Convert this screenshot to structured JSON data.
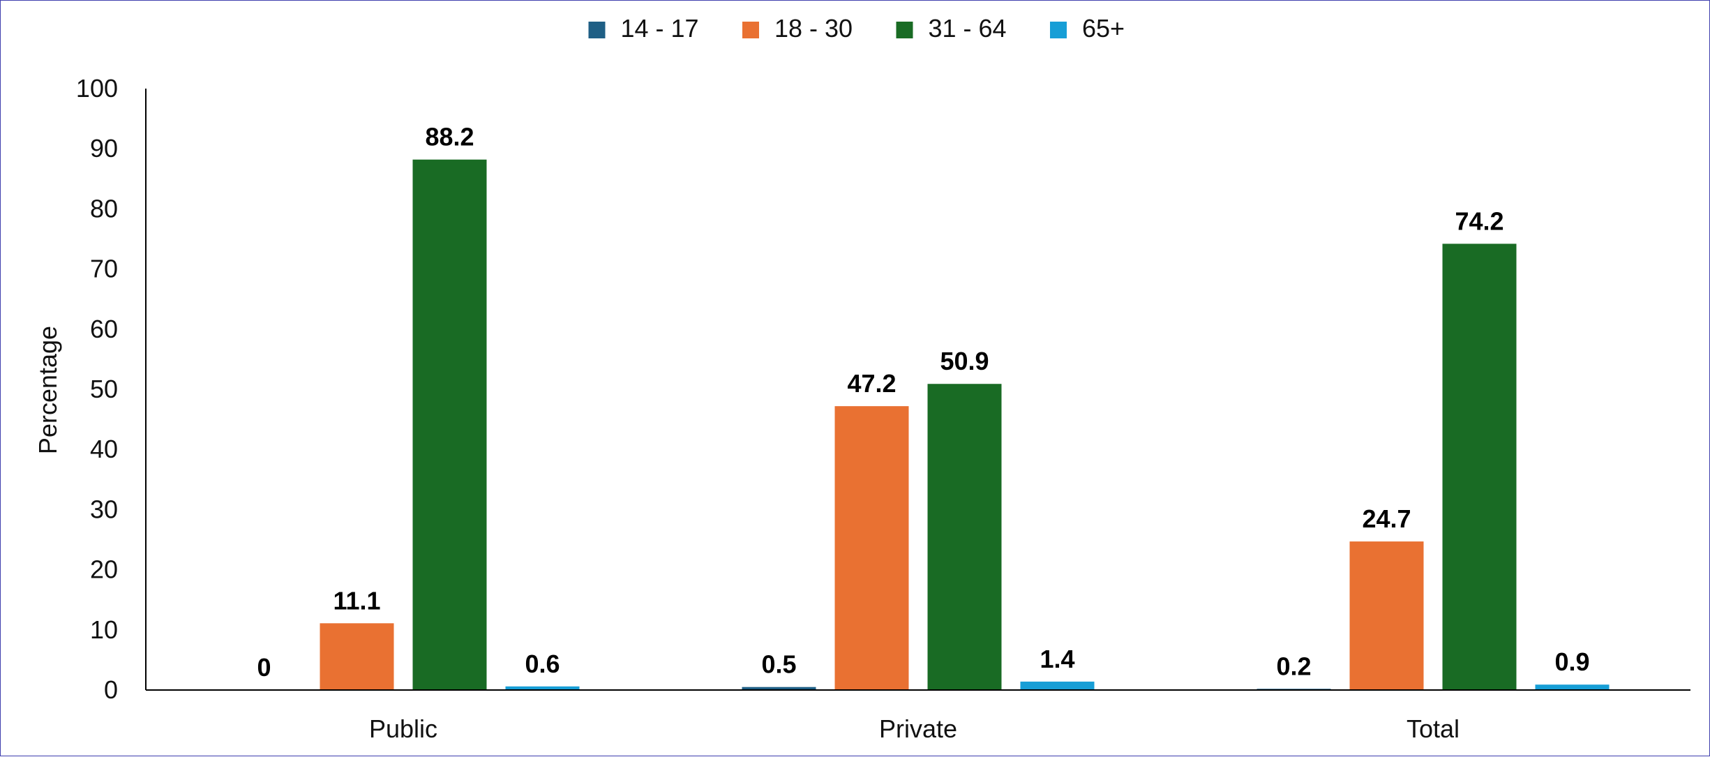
{
  "chart_data": {
    "type": "bar",
    "categories": [
      "Public",
      "Private",
      "Total"
    ],
    "series": [
      {
        "name": "14 - 17",
        "values": [
          0,
          0.5,
          0.2
        ],
        "color": "#1f5f85"
      },
      {
        "name": "18 - 30",
        "values": [
          11.1,
          47.2,
          24.7
        ],
        "color": "#e97132"
      },
      {
        "name": "31 - 64",
        "values": [
          88.2,
          50.9,
          74.2
        ],
        "color": "#196b24"
      },
      {
        "name": "65+",
        "values": [
          0.6,
          1.4,
          0.9
        ],
        "color": "#179ed6"
      }
    ],
    "xlabel": "",
    "ylabel": "Percentage",
    "ylim": [
      0,
      100
    ],
    "yticks": [
      0,
      10,
      20,
      30,
      40,
      50,
      60,
      70,
      80,
      90,
      100
    ],
    "legend_position": "top-center",
    "grid": false,
    "data_labels": true
  }
}
